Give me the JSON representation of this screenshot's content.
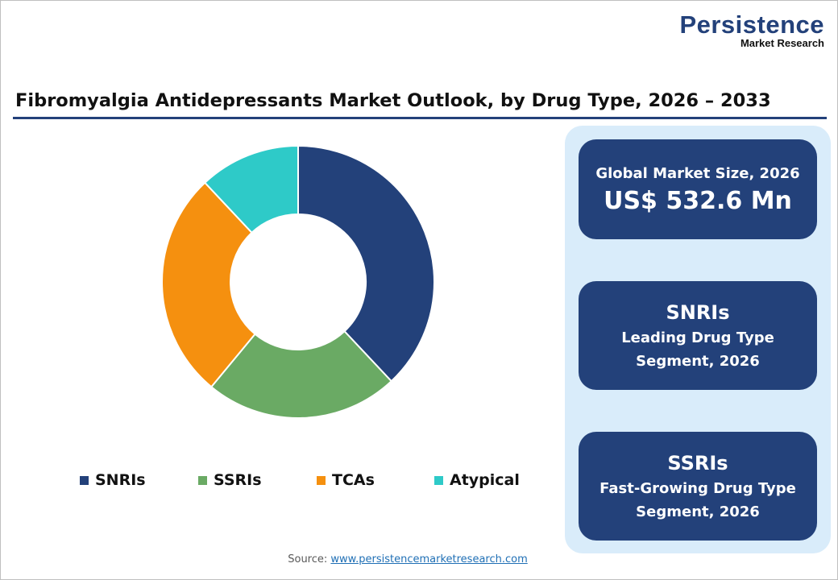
{
  "logo": {
    "line1": "Persistence",
    "line2": "Market Research"
  },
  "title": "Fibromyalgia Antidepressants Market Outlook, by Drug Type, 2026 – 2033",
  "chart_data": {
    "type": "pie",
    "donut": true,
    "categories": [
      "SNRIs",
      "SSRIs",
      "TCAs",
      "Atypical"
    ],
    "values": [
      38,
      23,
      27,
      12
    ],
    "unit": "% share (estimated)",
    "colors": [
      "#23417a",
      "#6aaa64",
      "#f5900f",
      "#2ecac8"
    ],
    "legend_position": "bottom"
  },
  "cards": [
    {
      "label": "Global Market Size, 2026",
      "value": "US$ 532.6 Mn"
    },
    {
      "value": "SNRIs",
      "label1": "Leading Drug Type",
      "label2": "Segment, 2026"
    },
    {
      "value": "SSRIs",
      "label1": "Fast-Growing Drug Type",
      "label2": "Segment, 2026"
    }
  ],
  "source": {
    "label": "Source:",
    "link": "www.persistencemarketresearch.com"
  }
}
